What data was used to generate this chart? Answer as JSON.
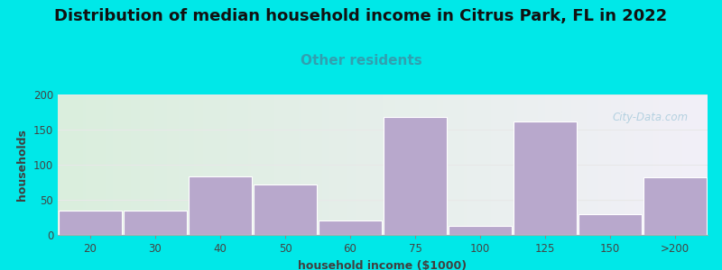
{
  "title": "Distribution of median household income in Citrus Park, FL in 2022",
  "subtitle": "Other residents",
  "xlabel": "household income ($1000)",
  "ylabel": "households",
  "categories": [
    "20",
    "30",
    "40",
    "50",
    "60",
    "75",
    "100",
    "125",
    "150",
    ">200"
  ],
  "values": [
    35,
    35,
    83,
    72,
    20,
    168,
    13,
    162,
    29,
    82
  ],
  "bar_color": "#b8a8cc",
  "bar_edge_color": "#ffffff",
  "ylim": [
    0,
    200
  ],
  "yticks": [
    0,
    50,
    100,
    150,
    200
  ],
  "background_outer": "#00e8e8",
  "background_plot_left": "#daeedd",
  "background_plot_right": "#f2f0f8",
  "title_fontsize": 13,
  "subtitle_fontsize": 11,
  "subtitle_color": "#30a0b0",
  "axis_label_fontsize": 9,
  "tick_color": "#444444",
  "watermark_text": "City-Data.com",
  "watermark_color": "#aaccdd",
  "grid_color": "#e8e8e8"
}
